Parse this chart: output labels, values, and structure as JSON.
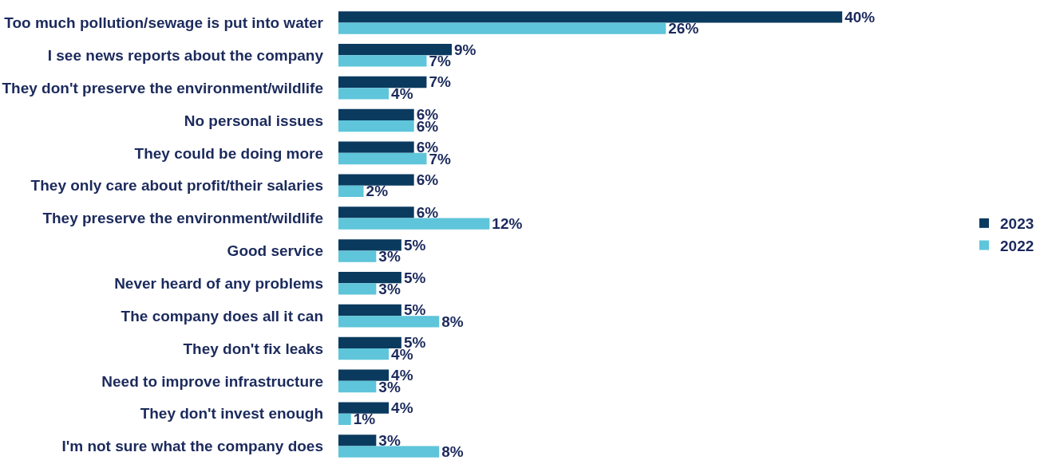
{
  "chart_data": {
    "type": "bar",
    "orientation": "horizontal",
    "legend": "right",
    "grid": false,
    "tick_labels": "y",
    "categories": [
      "Too much pollution/sewage is put into water",
      "I see news reports about the company",
      "They don't preserve the environment/wildlife",
      "No personal issues",
      "They could be doing more",
      "They only care about profit/their salaries",
      "They preserve the environment/wildlife",
      "Good service",
      "Never heard of any problems",
      "The company does all it can",
      "They don't fix leaks",
      "Need to improve infrastructure",
      "They don't invest enough",
      "I'm not sure what the company does"
    ],
    "series": [
      {
        "name": "2023",
        "color": "#0b3a5f",
        "values": [
          40,
          9,
          7,
          6,
          6,
          6,
          6,
          5,
          5,
          5,
          5,
          4,
          4,
          3
        ],
        "value_labels": [
          "40%",
          "9%",
          "7%",
          "6%",
          "6%",
          "6%",
          "6%",
          "5%",
          "5%",
          "5%",
          "5%",
          "4%",
          "4%",
          "3%"
        ]
      },
      {
        "name": "2022",
        "color": "#5ec5da",
        "values": [
          26,
          7,
          4,
          6,
          7,
          2,
          12,
          3,
          3,
          8,
          4,
          3,
          1,
          8
        ],
        "value_labels": [
          "26%",
          "7%",
          "4%",
          "6%",
          "7%",
          "2%",
          "12%",
          "3%",
          "3%",
          "8%",
          "4%",
          "3%",
          "1%",
          "8%"
        ]
      }
    ]
  }
}
